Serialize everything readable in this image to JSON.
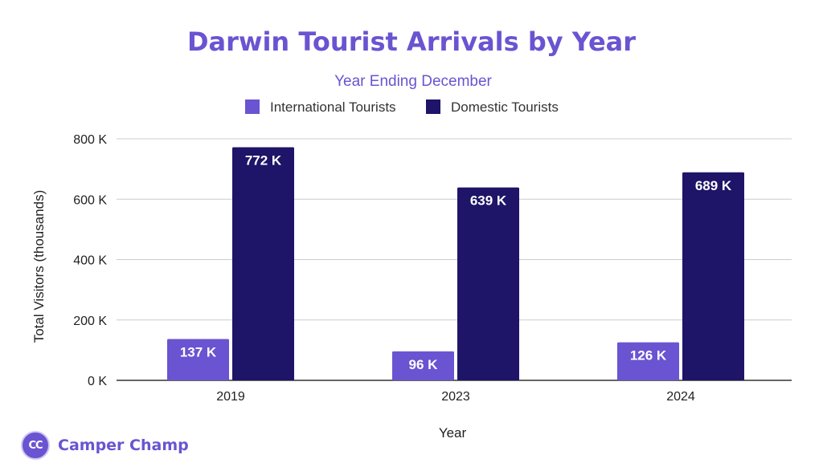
{
  "chart_data": {
    "type": "bar",
    "title": "Darwin Tourist Arrivals by Year",
    "subtitle": "Year Ending December",
    "xlabel": "Year",
    "ylabel": "Total Visitors (thousands)",
    "categories": [
      "2019",
      "2023",
      "2024"
    ],
    "series": [
      {
        "name": "International Tourists",
        "color": "#6a54d1",
        "values": [
          137,
          96,
          126
        ],
        "labels": [
          "137 K",
          "96 K",
          "126 K"
        ]
      },
      {
        "name": "Domestic Tourists",
        "color": "#1e1468",
        "values": [
          772,
          639,
          689
        ],
        "labels": [
          "772 K",
          "639 K",
          "689 K"
        ]
      }
    ],
    "ylim": [
      0,
      800
    ],
    "yticks": [
      0,
      200,
      400,
      600,
      800
    ],
    "ytick_labels": [
      "0 K",
      "200 K",
      "400 K",
      "600 K",
      "800 K"
    ],
    "grid": true,
    "legend_position": "top-center"
  },
  "brand": {
    "logo_text": "CC",
    "name": "Camper Champ",
    "color": "#6a54d1"
  }
}
